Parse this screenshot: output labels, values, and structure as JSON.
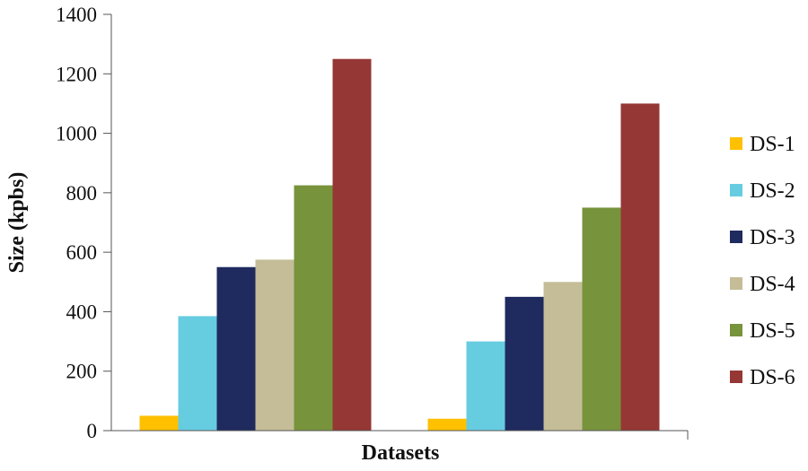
{
  "chart_data": {
    "type": "bar",
    "title": "",
    "xlabel": "Datasets",
    "ylabel": "Size (kpbs)",
    "ylim": [
      0,
      1400
    ],
    "yticks": [
      0,
      200,
      400,
      600,
      800,
      1000,
      1200,
      1400
    ],
    "grid": false,
    "legend_position": "right",
    "categories": [
      "",
      ""
    ],
    "series": [
      {
        "name": "DS-1",
        "color": "#FFC000",
        "values": [
          50,
          40
        ]
      },
      {
        "name": "DS-2",
        "color": "#66CCE0",
        "values": [
          385,
          300
        ]
      },
      {
        "name": "DS-3",
        "color": "#1F2A5E",
        "values": [
          550,
          450
        ]
      },
      {
        "name": "DS-4",
        "color": "#C4BD97",
        "values": [
          575,
          500
        ]
      },
      {
        "name": "DS-5",
        "color": "#77933C",
        "values": [
          825,
          750
        ]
      },
      {
        "name": "DS-6",
        "color": "#953735",
        "values": [
          1250,
          1100
        ]
      }
    ]
  }
}
